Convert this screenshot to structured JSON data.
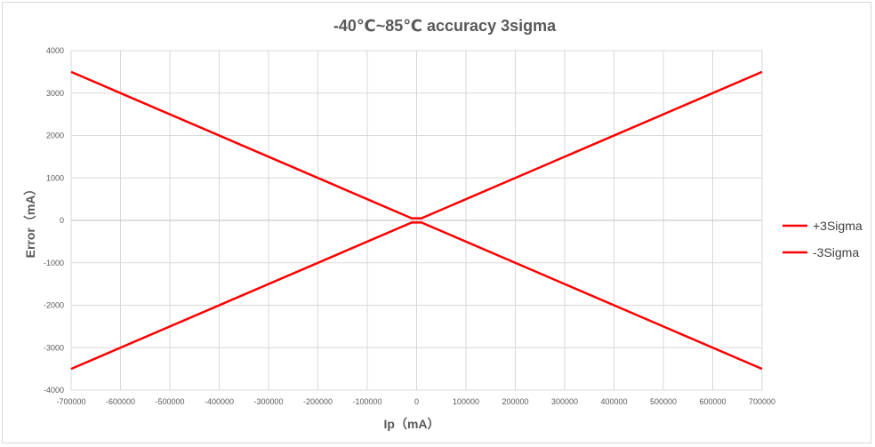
{
  "chart_data": {
    "type": "line",
    "title": "-40℃~85℃ accuracy 3sigma",
    "xlabel": "Ip（mA）",
    "ylabel": "Error（mA）",
    "xlim": [
      -700000,
      700000
    ],
    "ylim": [
      -4000,
      4000
    ],
    "xticks": [
      -700000,
      -600000,
      -500000,
      -400000,
      -300000,
      -200000,
      -100000,
      0,
      100000,
      200000,
      300000,
      400000,
      500000,
      600000,
      700000
    ],
    "yticks": [
      4000,
      3000,
      2000,
      1000,
      0,
      -1000,
      -2000,
      -3000,
      -4000
    ],
    "grid": true,
    "legend_position": "right",
    "series": [
      {
        "name": "+3Sigma",
        "color": "#ff0000",
        "x": [
          -700000,
          -10000,
          10000,
          700000
        ],
        "y": [
          3500,
          50,
          50,
          3500
        ]
      },
      {
        "name": "-3Sigma",
        "color": "#ff0000",
        "x": [
          -700000,
          -10000,
          10000,
          700000
        ],
        "y": [
          -3500,
          -50,
          -50,
          -3500
        ]
      }
    ]
  }
}
